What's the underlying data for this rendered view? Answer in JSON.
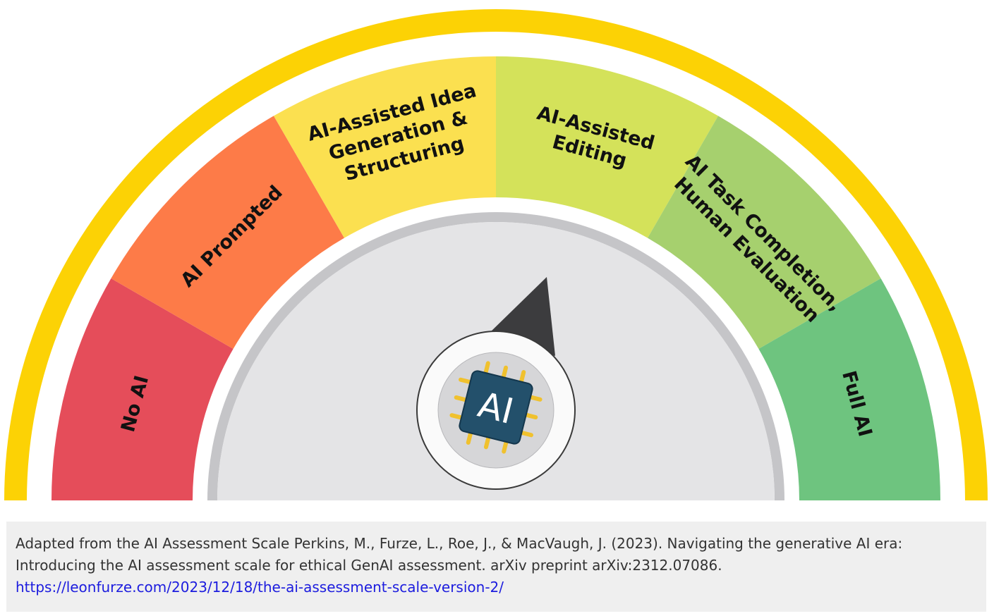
{
  "colors": {
    "outer_band": "#fcd205",
    "inner_track": "#c5c5c8",
    "dial_face": "#e4e4e6",
    "needle": "#3c3c3e",
    "hub_ring": "#fafafa",
    "hub_core": "#d6d6d8",
    "chip": "#23506b",
    "chip_pins": "#f0c12e",
    "link": "#1c1cde"
  },
  "scale": {
    "segments": [
      {
        "label": "No AI",
        "color": "#e54d5a"
      },
      {
        "label": "AI Prompted",
        "color": "#fd7b48"
      },
      {
        "label": "AI-Assisted Idea Generation & Structuring",
        "color": "#fbe050"
      },
      {
        "label": "AI-Assisted Editing",
        "color": "#d4e25a"
      },
      {
        "label": "AI Task Completion, Human Evaluation",
        "color": "#a6d06e"
      },
      {
        "label": "Full AI",
        "color": "#6ec47f"
      }
    ]
  },
  "hub": {
    "icon": "ai-chip-icon",
    "text": "AI"
  },
  "citation": {
    "line1": "Adapted from the AI Assessment Scale Perkins, M., Furze, L., Roe, J., & MacVaugh, J. (2023). Navigating the generative AI era:",
    "line2": "Introducing the AI assessment scale for ethical GenAI assessment. arXiv preprint arXiv:2312.07086.",
    "link": "https://leonfurze.com/2023/12/18/the-ai-assessment-scale-version-2/"
  }
}
